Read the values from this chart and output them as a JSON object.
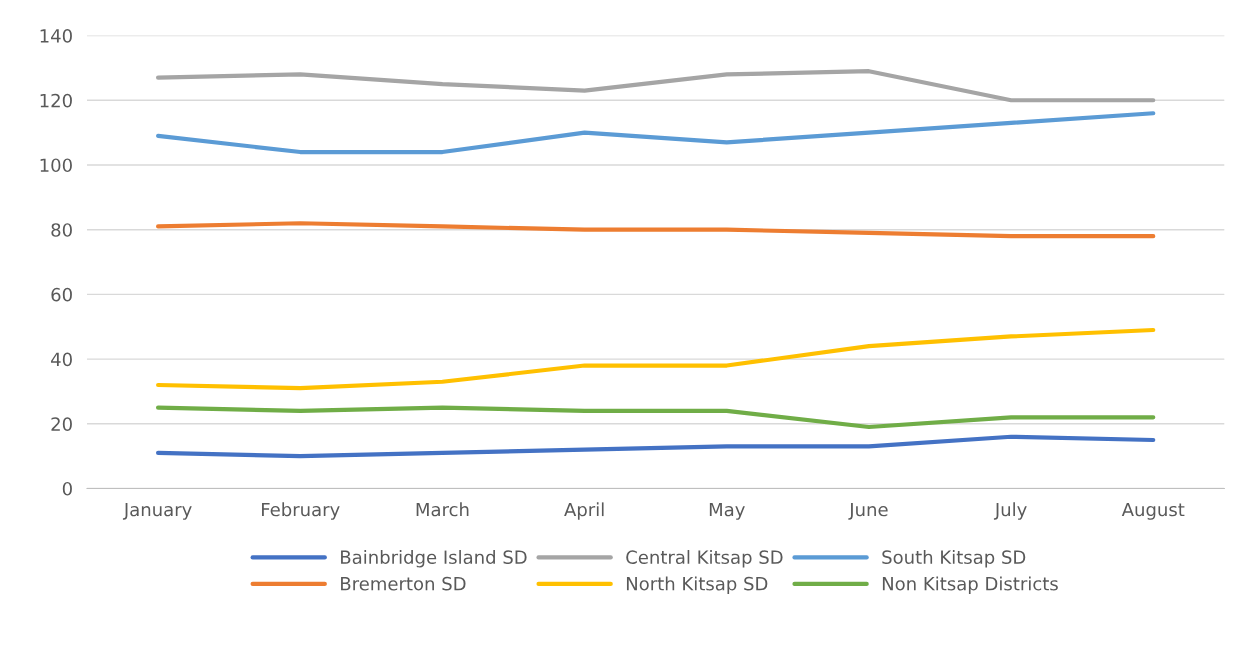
{
  "chart_data": {
    "type": "line",
    "categories": [
      "January",
      "February",
      "March",
      "April",
      "May",
      "June",
      "July",
      "August"
    ],
    "series": [
      {
        "name": "Bainbridge Island SD",
        "color": "#4472c4",
        "values": [
          11,
          10,
          11,
          12,
          13,
          13,
          16,
          15
        ]
      },
      {
        "name": "Bremerton SD",
        "color": "#ed7d31",
        "values": [
          81,
          82,
          81,
          80,
          80,
          79,
          78,
          78
        ]
      },
      {
        "name": "Central Kitsap SD",
        "color": "#a5a5a5",
        "values": [
          127,
          128,
          125,
          123,
          128,
          129,
          120,
          120
        ]
      },
      {
        "name": "North Kitsap SD",
        "color": "#ffc000",
        "values": [
          32,
          31,
          33,
          38,
          38,
          44,
          47,
          49
        ]
      },
      {
        "name": "South Kitsap SD",
        "color": "#5b9bd5",
        "values": [
          109,
          104,
          104,
          110,
          107,
          110,
          113,
          116
        ]
      },
      {
        "name": "Non Kitsap Districts",
        "color": "#70ad47",
        "values": [
          25,
          24,
          25,
          24,
          24,
          19,
          22,
          22
        ]
      }
    ],
    "ylim": [
      0,
      140
    ],
    "yticks": [
      0,
      20,
      40,
      60,
      80,
      100,
      120,
      140
    ],
    "grid": "y",
    "legend": "bottom",
    "marker": "none",
    "line_style": "solid"
  }
}
